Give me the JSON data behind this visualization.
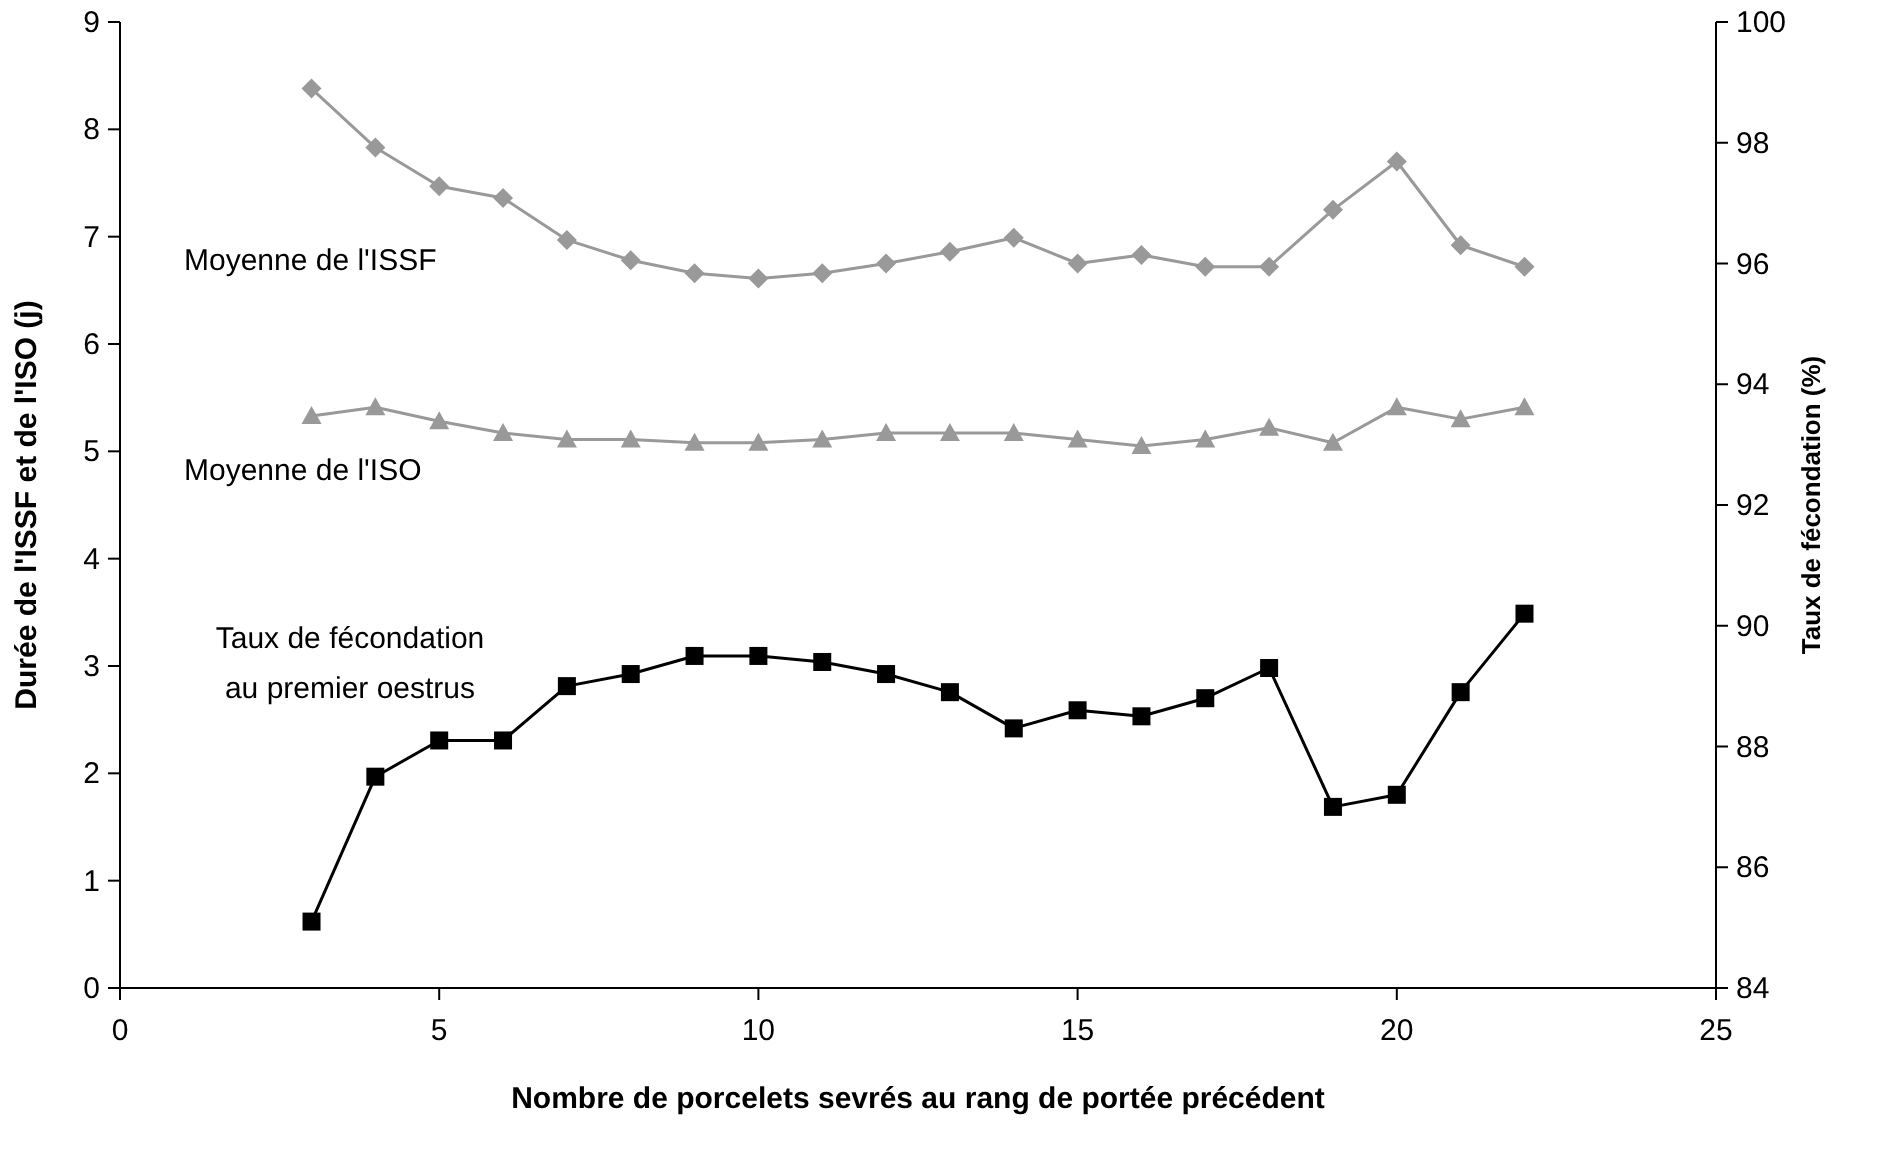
{
  "chart_data": {
    "type": "line",
    "xlabel": "Nombre de porcelets sevrés au rang de portée précédent",
    "ylabel": "Durée de l'ISSF et de l'ISO (j)",
    "y2label": "Taux de fécondation (%)",
    "x": [
      3,
      4,
      5,
      6,
      7,
      8,
      9,
      10,
      11,
      12,
      13,
      14,
      15,
      16,
      17,
      18,
      19,
      20,
      21,
      22
    ],
    "xlim": [
      0,
      25
    ],
    "xticks": [
      0,
      5,
      10,
      15,
      20,
      25
    ],
    "ylim": [
      0,
      9
    ],
    "yticks": [
      0,
      1,
      2,
      3,
      4,
      5,
      6,
      7,
      8,
      9
    ],
    "y2lim": [
      84,
      100
    ],
    "y2ticks": [
      84,
      86,
      88,
      90,
      92,
      94,
      96,
      98,
      100
    ],
    "grid": false,
    "line_style": "solid",
    "series": [
      {
        "name": "Moyenne de l'ISSF",
        "color": "#999999",
        "marker": "diamond",
        "values": [
          8.38,
          7.83,
          7.47,
          7.36,
          6.97,
          6.78,
          6.66,
          6.61,
          6.66,
          6.75,
          6.86,
          6.99,
          6.75,
          6.83,
          6.72,
          6.72,
          7.25,
          7.7,
          6.92,
          6.72
        ]
      },
      {
        "name": "Moyenne de l'ISO",
        "color": "#999999",
        "marker": "triangle",
        "values": [
          5.33,
          5.41,
          5.28,
          5.17,
          5.11,
          5.11,
          5.08,
          5.08,
          5.11,
          5.17,
          5.17,
          5.17,
          5.11,
          5.05,
          5.11,
          5.22,
          5.08,
          5.41,
          5.3,
          5.41
        ]
      },
      {
        "name": "Taux de fécondation au premier oestrus",
        "color": "#000000",
        "marker": "square",
        "axis": "y2",
        "values": [
          85.1,
          87.5,
          88.1,
          88.1,
          89.0,
          89.2,
          89.5,
          89.5,
          89.4,
          89.2,
          88.9,
          88.3,
          88.6,
          88.5,
          88.8,
          89.3,
          87.0,
          87.2,
          88.9,
          90.2
        ]
      }
    ]
  }
}
